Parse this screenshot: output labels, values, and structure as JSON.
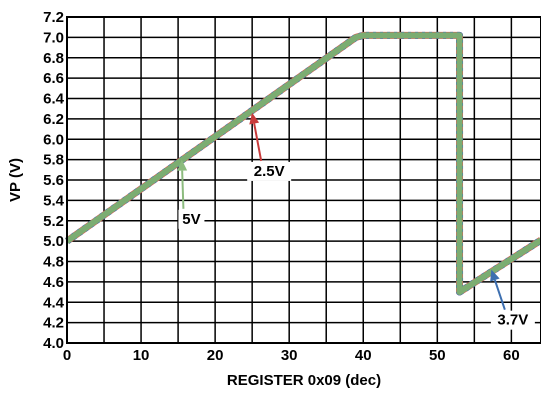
{
  "chart_data": {
    "type": "line",
    "xlabel": "REGISTER 0x09 (dec)",
    "ylabel": "VP (V)",
    "xlim": [
      0,
      64
    ],
    "ylim": [
      4.0,
      7.2
    ],
    "x_ticks": [
      "0",
      "10",
      "20",
      "30",
      "40",
      "50",
      "60"
    ],
    "x_tick_values": [
      0,
      10,
      20,
      30,
      40,
      50,
      60
    ],
    "y_ticks": [
      "4.0",
      "4.2",
      "4.4",
      "4.6",
      "4.8",
      "5.0",
      "5.2",
      "5.4",
      "5.6",
      "5.8",
      "6.0",
      "6.2",
      "6.4",
      "6.6",
      "6.8",
      "7.0",
      "7.2"
    ],
    "y_tick_values": [
      4.0,
      4.2,
      4.4,
      4.6,
      4.8,
      5.0,
      5.2,
      5.4,
      5.6,
      5.8,
      6.0,
      6.2,
      6.4,
      6.6,
      6.8,
      7.0,
      7.2
    ],
    "grid": true,
    "series": [
      {
        "name": "2.5V",
        "color": "#d9534f",
        "x": [
          0,
          39,
          40,
          53,
          53,
          64
        ],
        "y": [
          5.0,
          7.0,
          7.02,
          7.02,
          4.5,
          5.01
        ]
      },
      {
        "name": "3.7V",
        "color": "#3d6fb0",
        "x": [
          0,
          39,
          40,
          53,
          53,
          64
        ],
        "y": [
          5.0,
          7.0,
          7.02,
          7.02,
          4.5,
          5.01
        ]
      },
      {
        "name": "5V",
        "color": "#7cad72",
        "x": [
          0,
          39,
          40,
          53,
          53,
          64
        ],
        "y": [
          5.0,
          7.0,
          7.02,
          7.02,
          4.5,
          5.01
        ]
      }
    ],
    "annotations": [
      {
        "label": "2.5V",
        "arrow_color": "#c83b3b",
        "point_x": 25,
        "point_y": 6.26,
        "text_x": 27.3,
        "text_y": 5.64
      },
      {
        "label": "5V",
        "arrow_color": "#8cbb7e",
        "point_x": 15.5,
        "point_y": 5.8,
        "text_x": 16.8,
        "text_y": 5.17
      },
      {
        "label": "3.7V",
        "arrow_color": "#3d6fb0",
        "point_x": 57.3,
        "point_y": 4.72,
        "text_x": 60.2,
        "text_y": 4.18
      }
    ]
  }
}
